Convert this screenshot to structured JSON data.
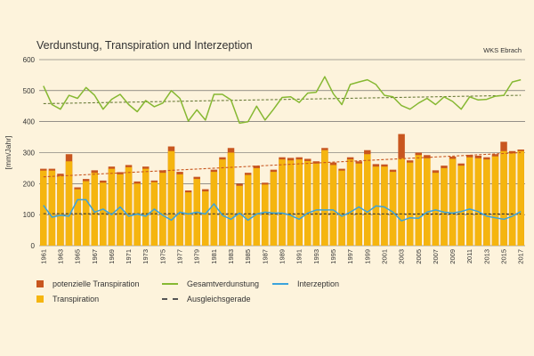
{
  "chart_data": {
    "type": "bar",
    "title": "Verdunstung, Transpiration und Interzeption",
    "subtitle": "WKS Ebrach",
    "ylabel": "[mm/Jahr]",
    "xlabel": "",
    "ylim": [
      0,
      600
    ],
    "yticks": [
      0,
      100,
      200,
      300,
      400,
      500,
      600
    ],
    "grid": true,
    "legend_position": "bottom",
    "colors": {
      "potenzielle": "#c8561f",
      "transpiration": "#f5b50f",
      "gesamt": "#86b832",
      "interzeption": "#3ba3dc",
      "ausgleich_orange": "#c8561f",
      "ausgleich_green": "#6b7c3a"
    },
    "years": [
      1961,
      1962,
      1963,
      1964,
      1965,
      1966,
      1967,
      1968,
      1969,
      1970,
      1971,
      1972,
      1973,
      1974,
      1975,
      1976,
      1977,
      1978,
      1979,
      1980,
      1981,
      1982,
      1983,
      1984,
      1985,
      1986,
      1987,
      1988,
      1989,
      1990,
      1991,
      1992,
      1993,
      1994,
      1995,
      1996,
      1997,
      1998,
      1999,
      2000,
      2001,
      2002,
      2003,
      2004,
      2005,
      2006,
      2007,
      2008,
      2009,
      2010,
      2011,
      2012,
      2013,
      2014,
      2015,
      2016,
      2017
    ],
    "x_tick_labels": [
      "1961",
      "1963",
      "1965",
      "1967",
      "1969",
      "1971",
      "1973",
      "1975",
      "1977",
      "1979",
      "1981",
      "1983",
      "1985",
      "1987",
      "1989",
      "1991",
      "1993",
      "1995",
      "1997",
      "1999",
      "2001",
      "2003",
      "2005",
      "2007",
      "2009",
      "2011",
      "2013",
      "2015",
      "2017"
    ],
    "series": [
      {
        "name": "potenzielle Transpiration",
        "type": "bar",
        "values": [
          248,
          248,
          232,
          295,
          188,
          215,
          243,
          210,
          255,
          237,
          260,
          207,
          255,
          210,
          243,
          320,
          238,
          178,
          222,
          182,
          245,
          285,
          315,
          200,
          235,
          258,
          203,
          245,
          285,
          283,
          285,
          280,
          272,
          315,
          268,
          248,
          285,
          272,
          308,
          263,
          262,
          245,
          360,
          275,
          300,
          292,
          243,
          258,
          287,
          265,
          293,
          290,
          285,
          295,
          335,
          305,
          310
        ]
      },
      {
        "name": "Transpiration",
        "type": "bar",
        "values": [
          242,
          242,
          225,
          272,
          182,
          208,
          235,
          203,
          248,
          230,
          253,
          200,
          248,
          205,
          235,
          305,
          230,
          172,
          215,
          175,
          238,
          278,
          300,
          193,
          228,
          250,
          197,
          238,
          278,
          275,
          278,
          273,
          265,
          308,
          260,
          242,
          278,
          265,
          295,
          255,
          255,
          238,
          282,
          268,
          292,
          282,
          235,
          250,
          280,
          258,
          285,
          282,
          278,
          288,
          305,
          298,
          305
        ]
      },
      {
        "name": "Gesamtverdunstung",
        "type": "line",
        "values": [
          515,
          455,
          440,
          485,
          475,
          510,
          485,
          440,
          472,
          488,
          455,
          432,
          468,
          448,
          460,
          500,
          475,
          402,
          438,
          405,
          488,
          488,
          470,
          395,
          400,
          450,
          405,
          440,
          478,
          480,
          462,
          492,
          495,
          545,
          490,
          455,
          520,
          528,
          535,
          520,
          485,
          480,
          452,
          440,
          460,
          475,
          455,
          480,
          465,
          440,
          480,
          470,
          472,
          482,
          485,
          528,
          535
        ]
      },
      {
        "name": "Interzeption",
        "type": "line",
        "values": [
          130,
          92,
          98,
          95,
          148,
          148,
          108,
          118,
          100,
          125,
          95,
          102,
          95,
          118,
          98,
          82,
          108,
          102,
          108,
          102,
          135,
          98,
          85,
          105,
          82,
          102,
          108,
          105,
          105,
          98,
          85,
          105,
          115,
          115,
          115,
          95,
          108,
          125,
          108,
          128,
          125,
          108,
          80,
          90,
          88,
          108,
          115,
          108,
          105,
          110,
          118,
          110,
          95,
          90,
          85,
          95,
          110
        ]
      },
      {
        "name": "Ausgleichsgerade",
        "type": "trend",
        "lines": [
          {
            "of": "potenzielle Transpiration",
            "start": 222,
            "end": 300
          },
          {
            "of": "Gesamtverdunstung",
            "start": 458,
            "end": 485
          },
          {
            "of": "Interzeption",
            "start": 103,
            "end": 102
          }
        ]
      }
    ]
  },
  "legend": {
    "potenzielle": "potenzielle Transpiration",
    "transpiration": "Transpiration",
    "gesamt": "Gesamtverdunstung",
    "ausgleich": "Ausgleichsgerade",
    "interzeption": "Interzeption"
  }
}
